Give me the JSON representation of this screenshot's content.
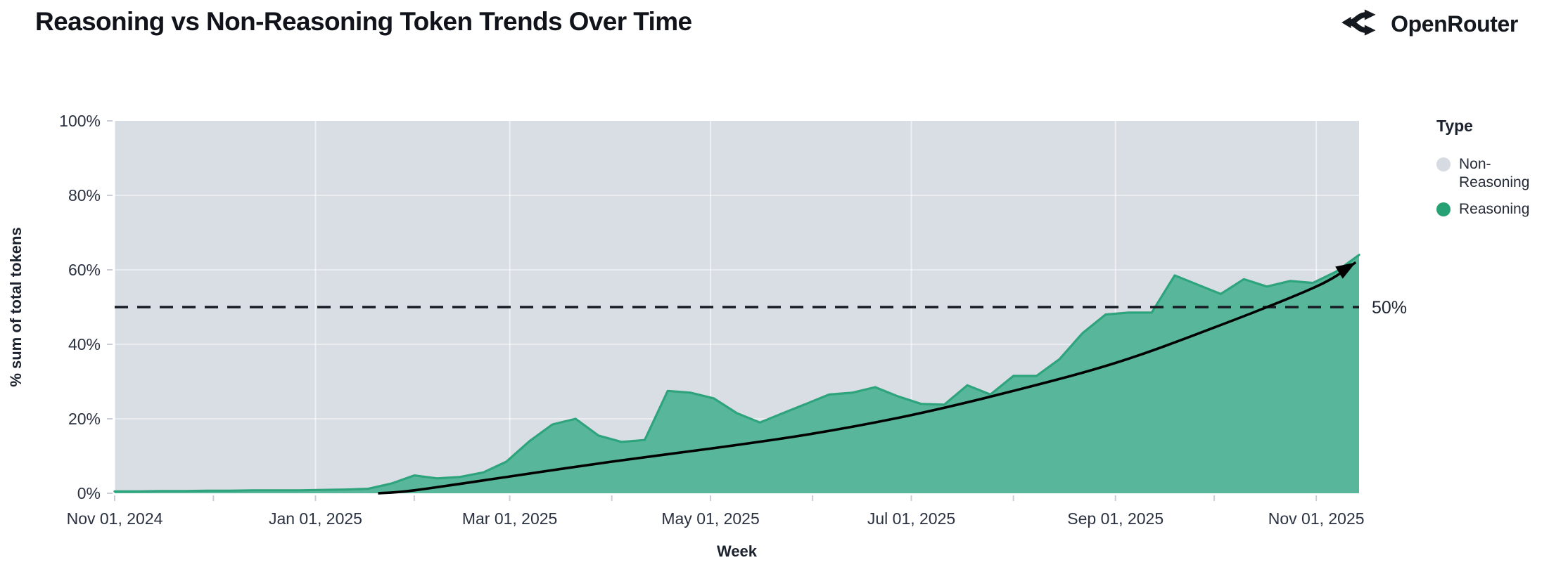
{
  "header": {
    "title": "Reasoning vs Non-Reasoning Token Trends Over Time",
    "brand": "OpenRouter"
  },
  "legend": {
    "title": "Type",
    "items": [
      {
        "label": "Non-Reasoning",
        "color": "#D6DAE1"
      },
      {
        "label": "Reasoning",
        "color": "#26A173"
      }
    ]
  },
  "chart_data": {
    "type": "area",
    "subtype": "100% stacked weekly share",
    "title": "Reasoning vs Non-Reasoning Token Trends Over Time",
    "xlabel": "Week",
    "ylabel": "% sum of total tokens",
    "ylim": [
      0,
      100
    ],
    "grid": true,
    "legend_position": "right",
    "y_tick_labels": [
      "100%",
      "80%",
      "60%",
      "40%",
      "20%",
      "0%"
    ],
    "y_tick_values": [
      100,
      80,
      60,
      40,
      20,
      0
    ],
    "x_tick_labels": [
      "Nov 01, 2024",
      "Jan 01, 2025",
      "Mar 01, 2025",
      "May 01, 2025",
      "Jul 01, 2025",
      "Sep 01, 2025",
      "Nov 01, 2025"
    ],
    "x_tick_days": [
      0,
      61,
      120,
      181,
      242,
      304,
      365
    ],
    "x_month_tick_days": [
      0,
      30,
      61,
      91,
      120,
      151,
      181,
      212,
      242,
      273,
      304,
      334,
      365
    ],
    "x_domain_days": [
      0,
      378
    ],
    "weeks": [
      "2024-11-01",
      "2024-11-08",
      "2024-11-15",
      "2024-11-22",
      "2024-11-29",
      "2024-12-06",
      "2024-12-13",
      "2024-12-20",
      "2024-12-27",
      "2025-01-03",
      "2025-01-10",
      "2025-01-17",
      "2025-01-24",
      "2025-01-31",
      "2025-02-07",
      "2025-02-14",
      "2025-02-21",
      "2025-02-28",
      "2025-03-07",
      "2025-03-14",
      "2025-03-21",
      "2025-03-28",
      "2025-04-04",
      "2025-04-11",
      "2025-04-18",
      "2025-04-25",
      "2025-05-02",
      "2025-05-09",
      "2025-05-16",
      "2025-05-23",
      "2025-05-30",
      "2025-06-06",
      "2025-06-13",
      "2025-06-20",
      "2025-06-27",
      "2025-07-04",
      "2025-07-11",
      "2025-07-18",
      "2025-07-25",
      "2025-08-01",
      "2025-08-08",
      "2025-08-15",
      "2025-08-22",
      "2025-08-29",
      "2025-09-05",
      "2025-09-12",
      "2025-09-19",
      "2025-09-26",
      "2025-10-03",
      "2025-10-10",
      "2025-10-17",
      "2025-10-24",
      "2025-10-31",
      "2025-11-07",
      "2025-11-14"
    ],
    "series": [
      {
        "name": "Non-Reasoning",
        "color": "#D9DDE4",
        "note": "remainder of each week up to 100% (background area)"
      },
      {
        "name": "Reasoning",
        "color": "#58B79B",
        "stroke": "#2EA47D",
        "values": [
          0.5,
          0.5,
          0.6,
          0.6,
          0.7,
          0.7,
          0.8,
          0.8,
          0.8,
          0.9,
          1.0,
          1.2,
          2.6,
          4.8,
          4.0,
          4.4,
          5.6,
          8.5,
          14.0,
          18.5,
          20.0,
          15.5,
          13.8,
          14.3,
          27.5,
          27.0,
          25.5,
          21.5,
          19.0,
          21.5,
          24.0,
          26.5,
          27.0,
          28.5,
          26.0,
          24.0,
          23.8,
          29.0,
          26.5,
          31.5,
          31.5,
          36.0,
          43.0,
          48.0,
          48.5,
          48.5,
          58.5,
          56.0,
          53.5,
          57.5,
          55.5,
          57.0,
          56.5,
          59.5,
          64.0
        ]
      }
    ],
    "threshold": {
      "value": 50,
      "label": "50%",
      "style": "dashed-black"
    },
    "trend_arrow": {
      "color": "#000000",
      "points": [
        [
          80,
          0
        ],
        [
          91,
          0.8
        ],
        [
          120,
          4.5
        ],
        [
          151,
          8.5
        ],
        [
          181,
          12
        ],
        [
          212,
          16
        ],
        [
          242,
          21
        ],
        [
          273,
          27.5
        ],
        [
          304,
          35
        ],
        [
          334,
          44.5
        ],
        [
          365,
          55.5
        ],
        [
          377,
          62
        ]
      ]
    }
  }
}
